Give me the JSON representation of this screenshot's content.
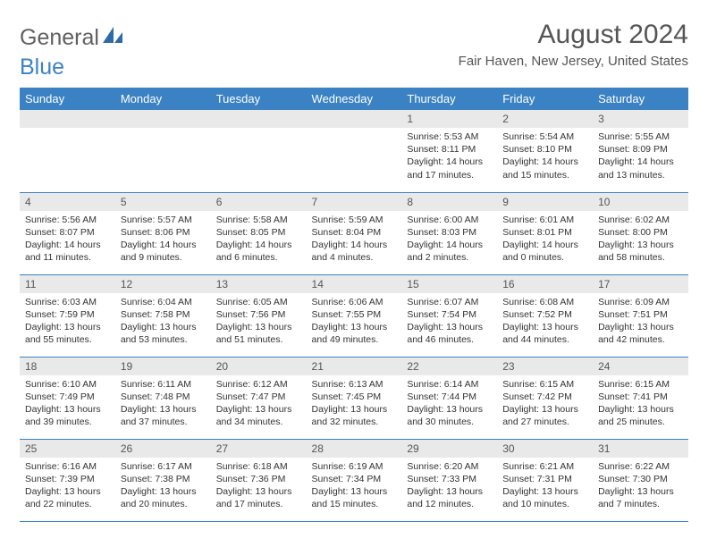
{
  "logo": {
    "word1": "General",
    "word2": "Blue"
  },
  "title": "August 2024",
  "location": "Fair Haven, New Jersey, United States",
  "colors": {
    "header_bg": "#3b82c4",
    "header_text": "#ffffff",
    "daynum_bg": "#e9e9e9",
    "border": "#3b82c4",
    "title_color": "#555555",
    "body_text": "#333333",
    "logo_gray": "#606060",
    "logo_blue": "#3b82c4"
  },
  "day_names": [
    "Sunday",
    "Monday",
    "Tuesday",
    "Wednesday",
    "Thursday",
    "Friday",
    "Saturday"
  ],
  "weeks": [
    [
      {
        "n": "",
        "sr": "",
        "ss": "",
        "dl": ""
      },
      {
        "n": "",
        "sr": "",
        "ss": "",
        "dl": ""
      },
      {
        "n": "",
        "sr": "",
        "ss": "",
        "dl": ""
      },
      {
        "n": "",
        "sr": "",
        "ss": "",
        "dl": ""
      },
      {
        "n": "1",
        "sr": "Sunrise: 5:53 AM",
        "ss": "Sunset: 8:11 PM",
        "dl": "Daylight: 14 hours and 17 minutes."
      },
      {
        "n": "2",
        "sr": "Sunrise: 5:54 AM",
        "ss": "Sunset: 8:10 PM",
        "dl": "Daylight: 14 hours and 15 minutes."
      },
      {
        "n": "3",
        "sr": "Sunrise: 5:55 AM",
        "ss": "Sunset: 8:09 PM",
        "dl": "Daylight: 14 hours and 13 minutes."
      }
    ],
    [
      {
        "n": "4",
        "sr": "Sunrise: 5:56 AM",
        "ss": "Sunset: 8:07 PM",
        "dl": "Daylight: 14 hours and 11 minutes."
      },
      {
        "n": "5",
        "sr": "Sunrise: 5:57 AM",
        "ss": "Sunset: 8:06 PM",
        "dl": "Daylight: 14 hours and 9 minutes."
      },
      {
        "n": "6",
        "sr": "Sunrise: 5:58 AM",
        "ss": "Sunset: 8:05 PM",
        "dl": "Daylight: 14 hours and 6 minutes."
      },
      {
        "n": "7",
        "sr": "Sunrise: 5:59 AM",
        "ss": "Sunset: 8:04 PM",
        "dl": "Daylight: 14 hours and 4 minutes."
      },
      {
        "n": "8",
        "sr": "Sunrise: 6:00 AM",
        "ss": "Sunset: 8:03 PM",
        "dl": "Daylight: 14 hours and 2 minutes."
      },
      {
        "n": "9",
        "sr": "Sunrise: 6:01 AM",
        "ss": "Sunset: 8:01 PM",
        "dl": "Daylight: 14 hours and 0 minutes."
      },
      {
        "n": "10",
        "sr": "Sunrise: 6:02 AM",
        "ss": "Sunset: 8:00 PM",
        "dl": "Daylight: 13 hours and 58 minutes."
      }
    ],
    [
      {
        "n": "11",
        "sr": "Sunrise: 6:03 AM",
        "ss": "Sunset: 7:59 PM",
        "dl": "Daylight: 13 hours and 55 minutes."
      },
      {
        "n": "12",
        "sr": "Sunrise: 6:04 AM",
        "ss": "Sunset: 7:58 PM",
        "dl": "Daylight: 13 hours and 53 minutes."
      },
      {
        "n": "13",
        "sr": "Sunrise: 6:05 AM",
        "ss": "Sunset: 7:56 PM",
        "dl": "Daylight: 13 hours and 51 minutes."
      },
      {
        "n": "14",
        "sr": "Sunrise: 6:06 AM",
        "ss": "Sunset: 7:55 PM",
        "dl": "Daylight: 13 hours and 49 minutes."
      },
      {
        "n": "15",
        "sr": "Sunrise: 6:07 AM",
        "ss": "Sunset: 7:54 PM",
        "dl": "Daylight: 13 hours and 46 minutes."
      },
      {
        "n": "16",
        "sr": "Sunrise: 6:08 AM",
        "ss": "Sunset: 7:52 PM",
        "dl": "Daylight: 13 hours and 44 minutes."
      },
      {
        "n": "17",
        "sr": "Sunrise: 6:09 AM",
        "ss": "Sunset: 7:51 PM",
        "dl": "Daylight: 13 hours and 42 minutes."
      }
    ],
    [
      {
        "n": "18",
        "sr": "Sunrise: 6:10 AM",
        "ss": "Sunset: 7:49 PM",
        "dl": "Daylight: 13 hours and 39 minutes."
      },
      {
        "n": "19",
        "sr": "Sunrise: 6:11 AM",
        "ss": "Sunset: 7:48 PM",
        "dl": "Daylight: 13 hours and 37 minutes."
      },
      {
        "n": "20",
        "sr": "Sunrise: 6:12 AM",
        "ss": "Sunset: 7:47 PM",
        "dl": "Daylight: 13 hours and 34 minutes."
      },
      {
        "n": "21",
        "sr": "Sunrise: 6:13 AM",
        "ss": "Sunset: 7:45 PM",
        "dl": "Daylight: 13 hours and 32 minutes."
      },
      {
        "n": "22",
        "sr": "Sunrise: 6:14 AM",
        "ss": "Sunset: 7:44 PM",
        "dl": "Daylight: 13 hours and 30 minutes."
      },
      {
        "n": "23",
        "sr": "Sunrise: 6:15 AM",
        "ss": "Sunset: 7:42 PM",
        "dl": "Daylight: 13 hours and 27 minutes."
      },
      {
        "n": "24",
        "sr": "Sunrise: 6:15 AM",
        "ss": "Sunset: 7:41 PM",
        "dl": "Daylight: 13 hours and 25 minutes."
      }
    ],
    [
      {
        "n": "25",
        "sr": "Sunrise: 6:16 AM",
        "ss": "Sunset: 7:39 PM",
        "dl": "Daylight: 13 hours and 22 minutes."
      },
      {
        "n": "26",
        "sr": "Sunrise: 6:17 AM",
        "ss": "Sunset: 7:38 PM",
        "dl": "Daylight: 13 hours and 20 minutes."
      },
      {
        "n": "27",
        "sr": "Sunrise: 6:18 AM",
        "ss": "Sunset: 7:36 PM",
        "dl": "Daylight: 13 hours and 17 minutes."
      },
      {
        "n": "28",
        "sr": "Sunrise: 6:19 AM",
        "ss": "Sunset: 7:34 PM",
        "dl": "Daylight: 13 hours and 15 minutes."
      },
      {
        "n": "29",
        "sr": "Sunrise: 6:20 AM",
        "ss": "Sunset: 7:33 PM",
        "dl": "Daylight: 13 hours and 12 minutes."
      },
      {
        "n": "30",
        "sr": "Sunrise: 6:21 AM",
        "ss": "Sunset: 7:31 PM",
        "dl": "Daylight: 13 hours and 10 minutes."
      },
      {
        "n": "31",
        "sr": "Sunrise: 6:22 AM",
        "ss": "Sunset: 7:30 PM",
        "dl": "Daylight: 13 hours and 7 minutes."
      }
    ]
  ]
}
